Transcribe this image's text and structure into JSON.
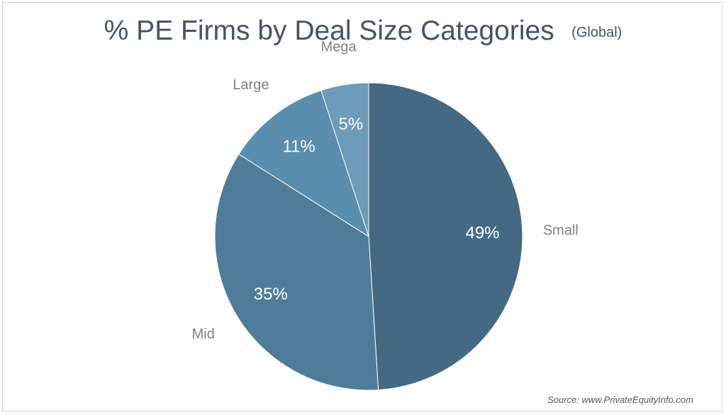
{
  "chart_data": {
    "type": "pie",
    "title": "% PE Firms by Deal Size Categories",
    "subtitle": "(Global)",
    "slices": [
      {
        "name": "Small",
        "value": 49,
        "label": "49%",
        "color": "#436a82"
      },
      {
        "name": "Mid",
        "value": 35,
        "label": "35%",
        "color": "#4f7d99"
      },
      {
        "name": "Large",
        "value": 11,
        "label": "11%",
        "color": "#5a8eae"
      },
      {
        "name": "Mega",
        "value": 5,
        "label": "5%",
        "color": "#6d9bb8"
      }
    ],
    "legend": "none"
  },
  "source": "Source: www.PrivateEquityInfo.com"
}
